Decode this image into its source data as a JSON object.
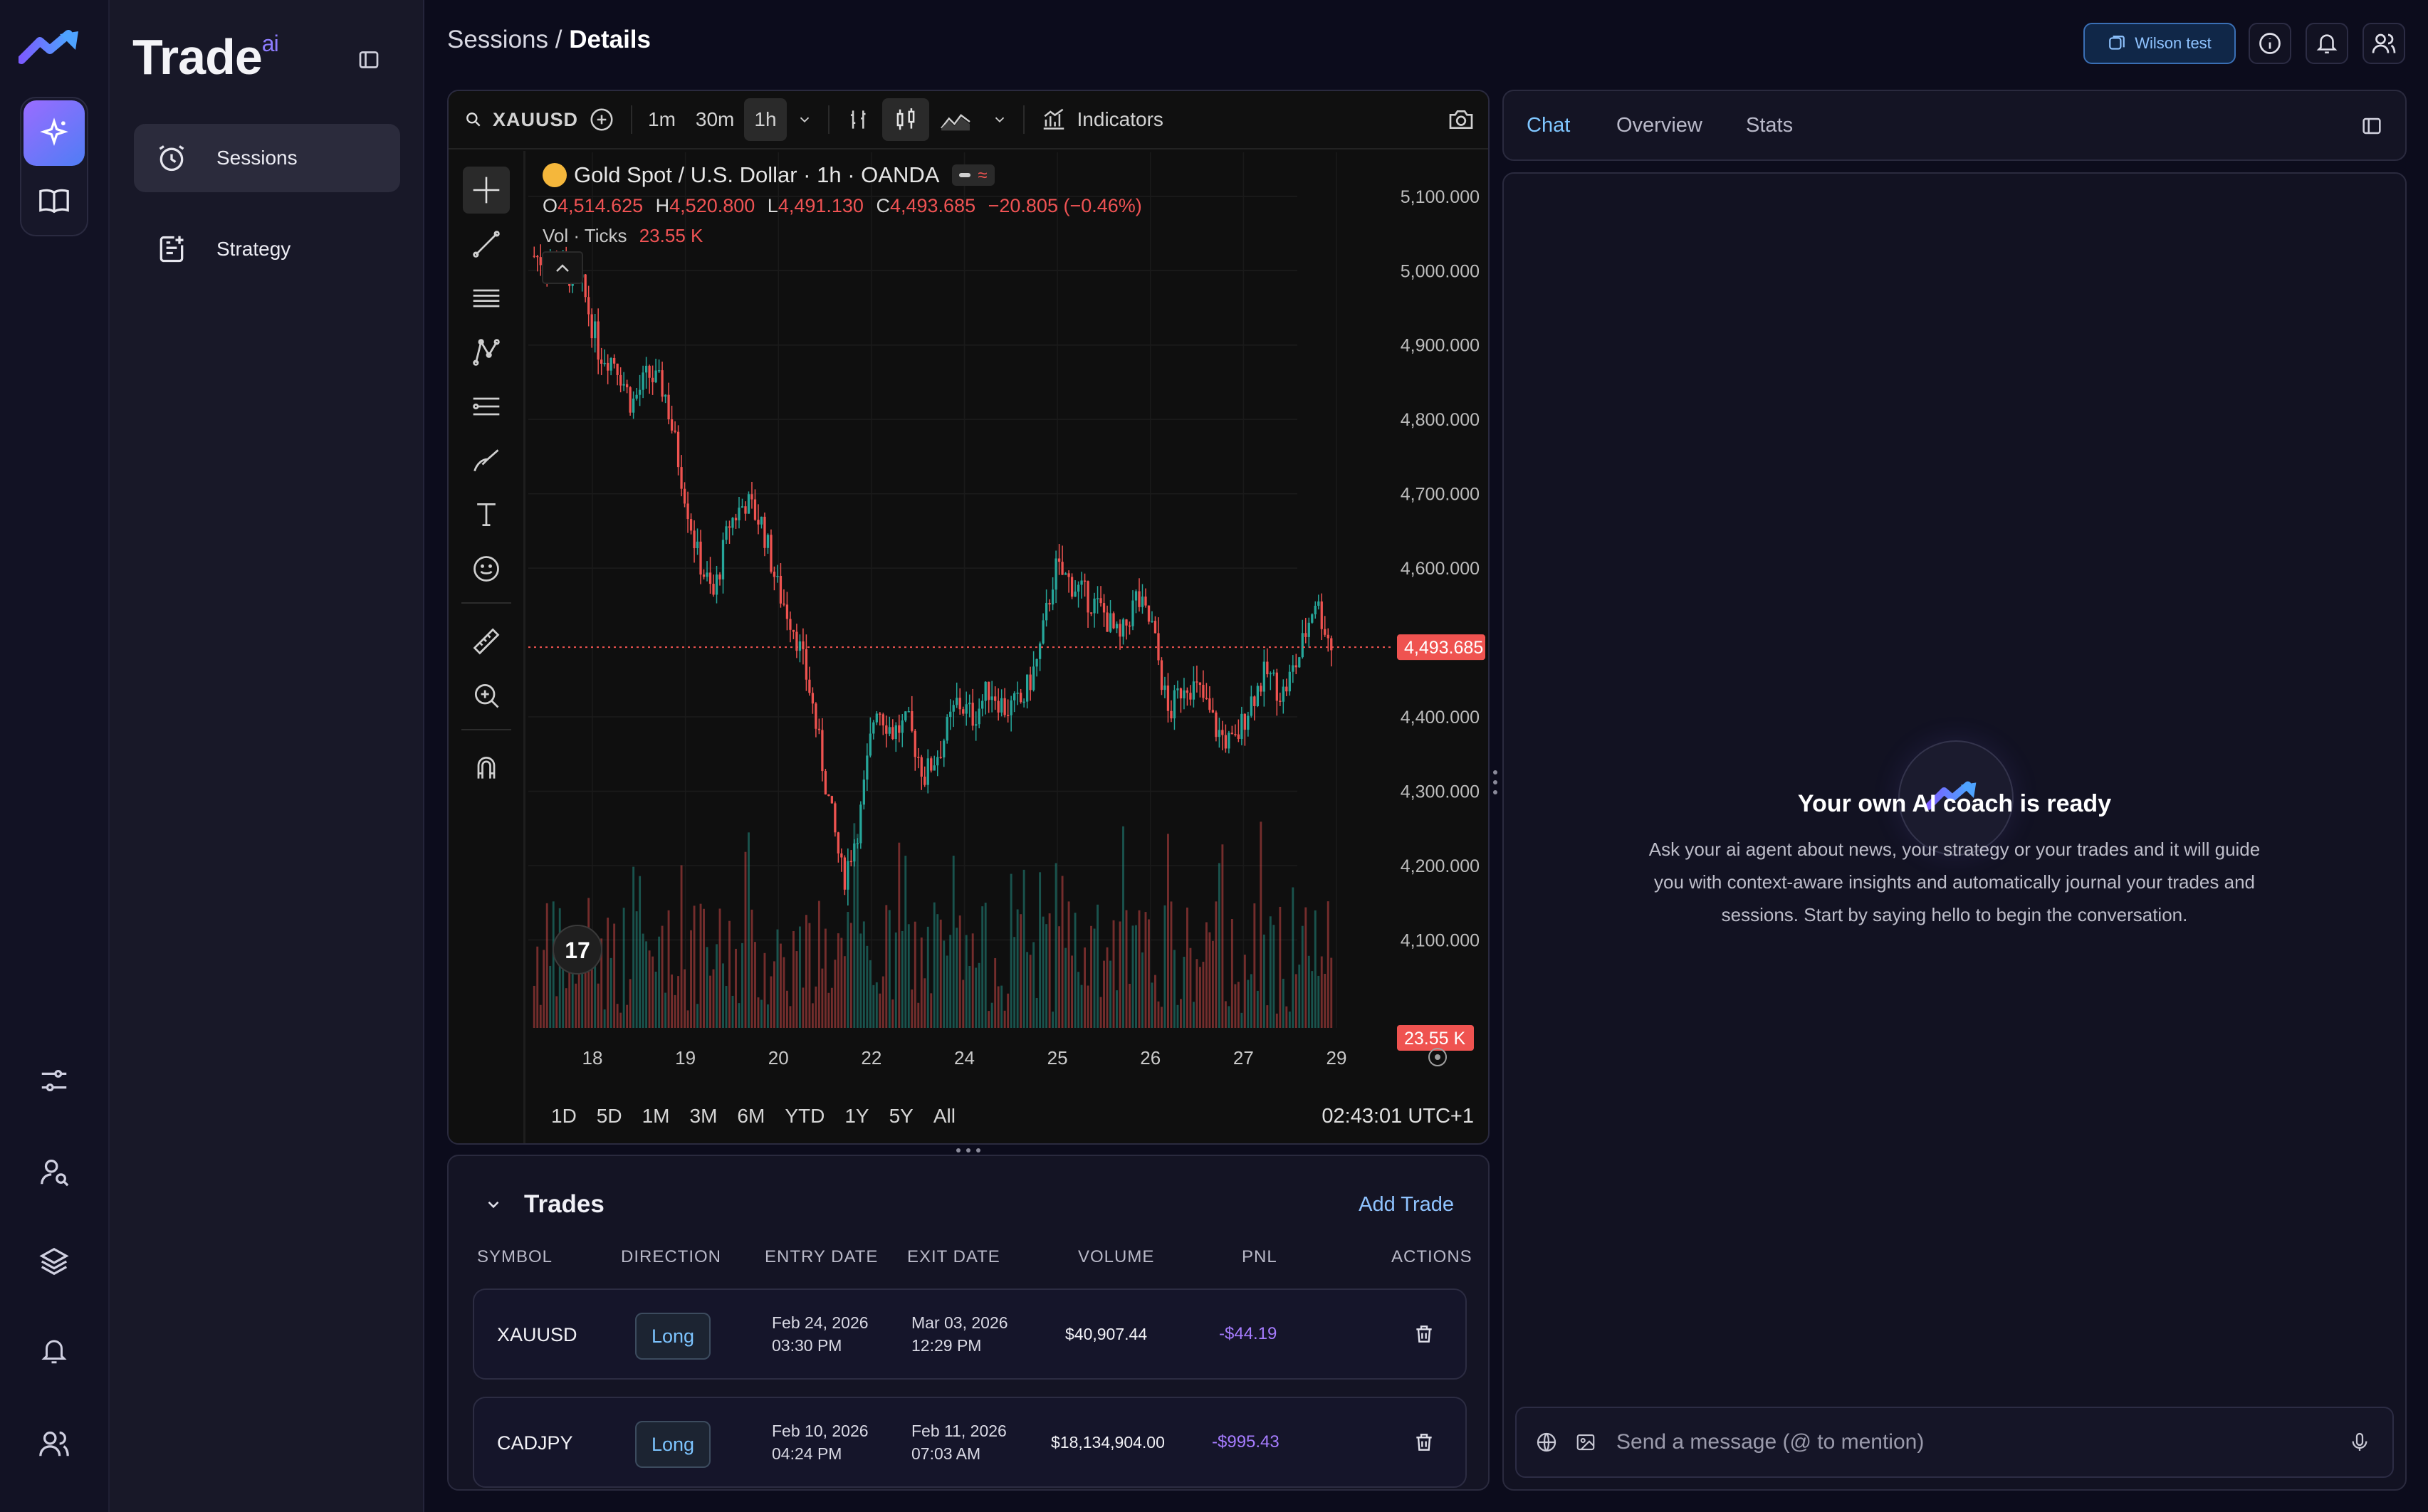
{
  "app": {
    "brand": "Trade",
    "brand_sup": "ai"
  },
  "breadcrumb": {
    "parent": "Sessions",
    "sep": " / ",
    "current": "Details"
  },
  "topbar": {
    "user_label": "Wilson test"
  },
  "sidebar": {
    "items": [
      {
        "label": "Sessions",
        "icon": "clock-icon"
      },
      {
        "label": "Strategy",
        "icon": "strategy-icon"
      }
    ]
  },
  "chart_toolbar": {
    "symbol": "XAUUSD",
    "intervals": [
      "1m",
      "30m",
      "1h"
    ],
    "active_interval": "1h",
    "indicators_label": "Indicators"
  },
  "chart_header": {
    "title": "Gold Spot / U.S. Dollar · 1h · OANDA",
    "o_label": "O",
    "o": "4,514.625",
    "h_label": "H",
    "h": "4,520.800",
    "l_label": "L",
    "l": "4,491.130",
    "c_label": "C",
    "c": "4,493.685",
    "change": "−20.805 (−0.46%)",
    "vol_label": "Vol · Ticks",
    "vol_value": "23.55 K"
  },
  "chart_data": {
    "type": "candlestick",
    "x_ticks": [
      "18",
      "19",
      "20",
      "22",
      "24",
      "25",
      "26",
      "27",
      "29"
    ],
    "y_ticks": [
      "5,100.000",
      "5,000.000",
      "4,900.000",
      "4,800.000",
      "4,700.000",
      "4,600.000",
      "4,400.000",
      "4,300.000",
      "4,200.000",
      "4,100.000"
    ],
    "ylim": [
      4020,
      5140
    ],
    "last_price": "4,493.685",
    "last_volume": "23.55 K",
    "close_path": [
      5020,
      5010,
      5000,
      4975,
      4890,
      4880,
      4820,
      4860,
      4840,
      4730,
      4620,
      4560,
      4660,
      4690,
      4660,
      4570,
      4520,
      4430,
      4300,
      4180,
      4260,
      4420,
      4380,
      4390,
      4320,
      4360,
      4420,
      4400,
      4440,
      4410,
      4420,
      4480,
      4600,
      4580,
      4560,
      4540,
      4500,
      4560,
      4520,
      4400,
      4450,
      4430,
      4380,
      4360,
      4420,
      4460,
      4430,
      4480,
      4560,
      4495
    ],
    "colors": {
      "up": "#26a69a",
      "down": "#ef5350"
    }
  },
  "chart_footer": {
    "ranges": [
      "1D",
      "5D",
      "1M",
      "3M",
      "6M",
      "YTD",
      "1Y",
      "5Y",
      "All"
    ],
    "clock": "02:43:01 UTC+1"
  },
  "trades": {
    "title": "Trades",
    "add_label": "Add Trade",
    "columns": [
      "SYMBOL",
      "DIRECTION",
      "ENTRY DATE",
      "EXIT DATE",
      "VOLUME",
      "PNL",
      "ACTIONS"
    ],
    "rows": [
      {
        "symbol": "XAUUSD",
        "direction": "Long",
        "entry_date": "Feb 24, 2026",
        "entry_time": "03:30 PM",
        "exit_date": "Mar 03, 2026",
        "exit_time": "12:29 PM",
        "volume": "$40,907.44",
        "pnl": "-$44.19"
      },
      {
        "symbol": "CADJPY",
        "direction": "Long",
        "entry_date": "Feb 10, 2026",
        "entry_time": "04:24 PM",
        "exit_date": "Feb 11, 2026",
        "exit_time": "07:03 AM",
        "volume": "$18,134,904.00",
        "pnl": "-$995.43"
      }
    ]
  },
  "chat": {
    "tabs": [
      "Chat",
      "Overview",
      "Stats"
    ],
    "active_tab": "Chat",
    "heading": "Your own AI coach is ready",
    "body": "Ask your ai agent about news, your strategy or your trades and it will guide you with context-aware insights and automatically journal your trades and sessions. Start by saying hello to begin the conversation.",
    "input_placeholder": "Send a message (@ to mention)"
  }
}
